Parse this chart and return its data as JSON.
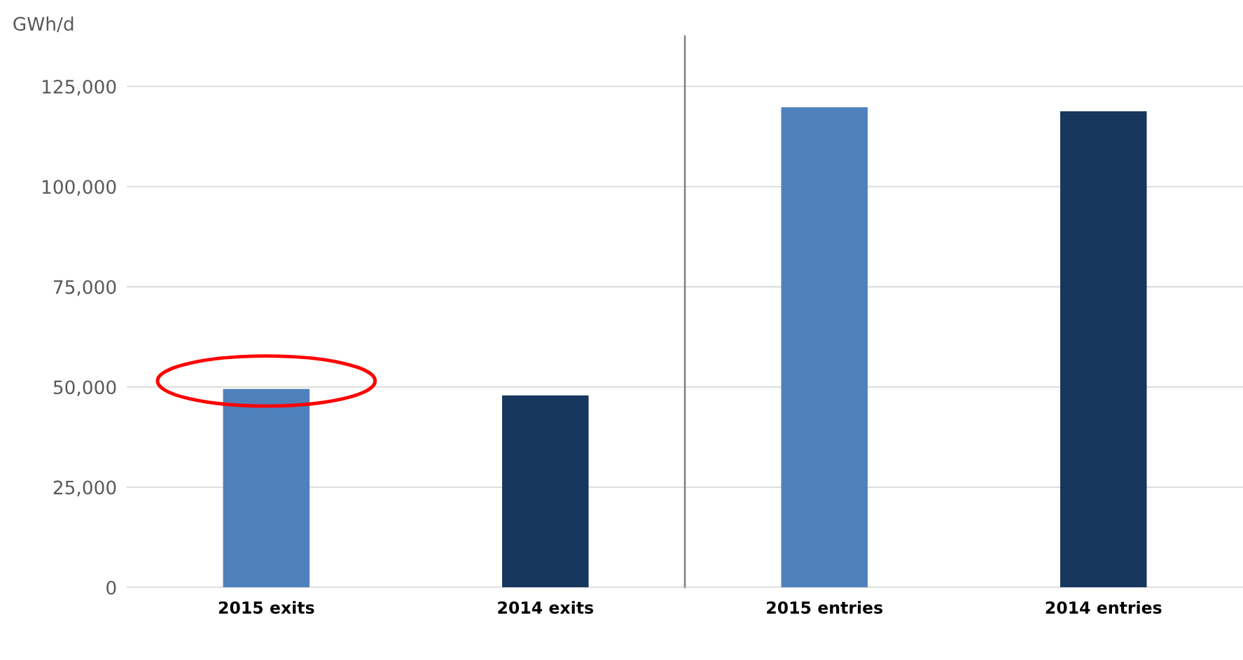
{
  "chart_data": [
    {
      "type": "bar",
      "ylabel": "GWh/d",
      "categories": [
        "2015 exits",
        "2014 exits"
      ],
      "values": [
        49500,
        47900
      ],
      "colors": [
        "#4f81bd",
        "#17375e"
      ],
      "ylim": [
        0,
        137500
      ],
      "yticks": [
        {
          "value": 0,
          "label": "0"
        },
        {
          "value": 25000,
          "label": "25,000"
        },
        {
          "value": 50000,
          "label": "50,000"
        },
        {
          "value": 75000,
          "label": "75,000"
        },
        {
          "value": 100000,
          "label": "100,000"
        },
        {
          "value": 125000,
          "label": "125,000"
        }
      ],
      "grid": "y"
    },
    {
      "type": "bar",
      "categories": [
        "2015 entries",
        "2014 entries"
      ],
      "values": [
        119800,
        118800
      ],
      "colors": [
        "#4f81bd",
        "#17375e"
      ],
      "ylim": [
        0,
        137500
      ],
      "yticks": [
        {
          "value": 0,
          "label": null
        },
        {
          "value": 25000,
          "label": null
        },
        {
          "value": 50000,
          "label": null
        },
        {
          "value": 75000,
          "label": null
        },
        {
          "value": 100000,
          "label": null
        },
        {
          "value": 125000,
          "label": null
        }
      ],
      "grid": "y",
      "tick_labels": "x"
    }
  ]
}
